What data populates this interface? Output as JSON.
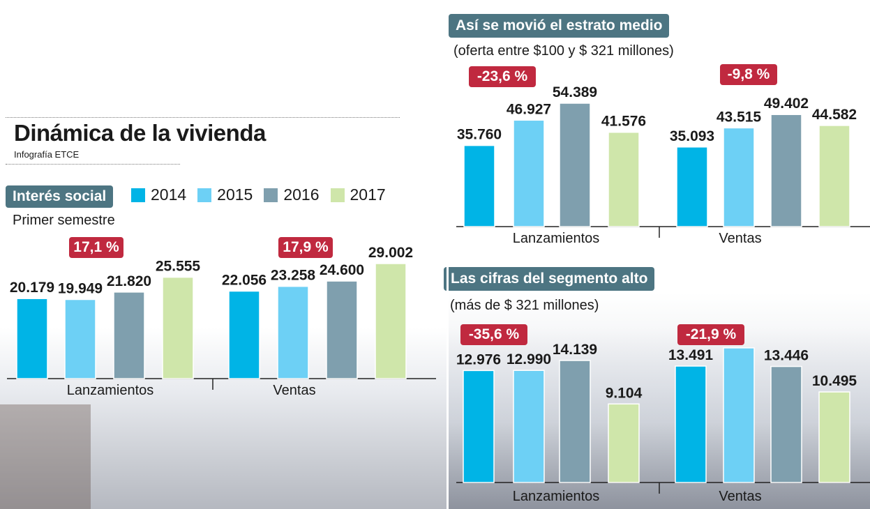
{
  "title": "Dinámica de la vivienda",
  "credit": "Infografía ETCE",
  "colors": {
    "2014": "#00b4e6",
    "2015": "#6dd0f5",
    "2016": "#7f9fae",
    "2017": "#cfe6aa",
    "badge": "#c0293f",
    "pill": "#4d7582"
  },
  "legend": [
    {
      "label": "2014",
      "color": "#00b4e6"
    },
    {
      "label": "2015",
      "color": "#6dd0f5"
    },
    {
      "label": "2016",
      "color": "#7f9fae"
    },
    {
      "label": "2017",
      "color": "#cfe6aa"
    }
  ],
  "panels": {
    "social": {
      "heading": "Interés social",
      "subtitle": "Primer semestre",
      "badges": [
        "17,1 %",
        "17,9 %"
      ]
    },
    "medio": {
      "heading": "Así se movió el estrato medio",
      "subtitle": "(oferta entre $100 y $ 321 millones)",
      "badges": [
        "-23,6 %",
        "-9,8 %"
      ]
    },
    "alto": {
      "heading": "Las cifras del segmento alto",
      "subtitle": "(más de $ 321 millones)",
      "badges": [
        "-35,6 %",
        "-21,9 %"
      ]
    }
  },
  "chart_data": [
    {
      "type": "bar",
      "title": "Interés social",
      "categories": [
        "Lanzamientos",
        "Ventas"
      ],
      "series": [
        {
          "name": "2014",
          "values": [
            20179,
            22056
          ],
          "labels": [
            "20.179",
            "22.056"
          ]
        },
        {
          "name": "2015",
          "values": [
            19949,
            23258
          ],
          "labels": [
            "19.949",
            "23.258"
          ]
        },
        {
          "name": "2016",
          "values": [
            21820,
            24600
          ],
          "labels": [
            "21.820",
            "24.600"
          ]
        },
        {
          "name": "2017",
          "values": [
            25555,
            29002
          ],
          "labels": [
            "25.555",
            "29.002"
          ]
        }
      ],
      "changes": [
        "17,1 %",
        "17,9 %"
      ]
    },
    {
      "type": "bar",
      "title": "Así se movió el estrato medio",
      "categories": [
        "Lanzamientos",
        "Ventas"
      ],
      "series": [
        {
          "name": "2014",
          "values": [
            35760,
            35093
          ],
          "labels": [
            "35.760",
            "35.093"
          ]
        },
        {
          "name": "2015",
          "values": [
            46927,
            43515
          ],
          "labels": [
            "46.927",
            "43.515"
          ]
        },
        {
          "name": "2016",
          "values": [
            54389,
            49402
          ],
          "labels": [
            "54.389",
            "49.402"
          ]
        },
        {
          "name": "2017",
          "values": [
            41576,
            44582
          ],
          "labels": [
            "41.576",
            "44.582"
          ]
        }
      ],
      "changes": [
        "-23,6 %",
        "-9,8 %"
      ]
    },
    {
      "type": "bar",
      "title": "Las cifras del segmento alto",
      "categories": [
        "Lanzamientos",
        "Ventas"
      ],
      "series": [
        {
          "name": "2014",
          "values": [
            12976,
            13491
          ],
          "labels": [
            "12.976",
            "13.491"
          ]
        },
        {
          "name": "2015",
          "values": [
            12990,
            15600
          ],
          "labels": [
            "12.990",
            ""
          ]
        },
        {
          "name": "2016",
          "values": [
            14139,
            13446
          ],
          "labels": [
            "14.139",
            "13.446"
          ]
        },
        {
          "name": "2017",
          "values": [
            9104,
            10495
          ],
          "labels": [
            "9.104",
            "10.495"
          ]
        }
      ],
      "changes": [
        "-35,6 %",
        "-21,9 %"
      ]
    }
  ]
}
